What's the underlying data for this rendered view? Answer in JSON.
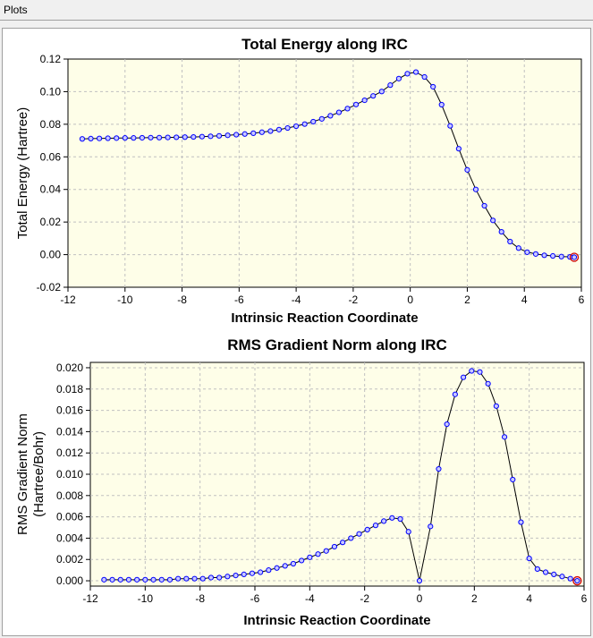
{
  "window": {
    "tab_label": "Plots"
  },
  "colors": {
    "plot_bg": "#fefee8",
    "grid": "#c0c0c0",
    "line": "#000000",
    "marker": "#0000ff",
    "marker_fill": "#c8c8ff",
    "endpoint": "#d00000"
  },
  "chart_data": [
    {
      "type": "line",
      "title": "Total Energy along IRC",
      "xlabel": "Intrinsic Reaction Coordinate",
      "ylabel": "Total Energy (Hartree)",
      "xlim": [
        -12,
        6
      ],
      "ylim": [
        -0.02,
        0.12
      ],
      "xticks": [
        -12,
        -10,
        -8,
        -6,
        -4,
        -2,
        0,
        2,
        4,
        6
      ],
      "yticks": [
        -0.02,
        0.0,
        0.02,
        0.04,
        0.06,
        0.08,
        0.1,
        0.12
      ],
      "ytick_labels": [
        "-0.02",
        "0.00",
        "0.02",
        "0.04",
        "0.06",
        "0.08",
        "0.10",
        "0.12"
      ],
      "xtick_labels": [
        "-12",
        "-10",
        "-8",
        "-6",
        "-4",
        "-2",
        "0",
        "2",
        "4",
        "6"
      ],
      "grid": true,
      "x": [
        -11.5,
        -11.2,
        -10.9,
        -10.6,
        -10.3,
        -10.0,
        -9.7,
        -9.4,
        -9.1,
        -8.8,
        -8.5,
        -8.2,
        -7.9,
        -7.6,
        -7.3,
        -7.0,
        -6.7,
        -6.4,
        -6.1,
        -5.8,
        -5.5,
        -5.2,
        -4.9,
        -4.6,
        -4.3,
        -4.0,
        -3.7,
        -3.4,
        -3.1,
        -2.8,
        -2.5,
        -2.2,
        -1.9,
        -1.6,
        -1.3,
        -1.0,
        -0.7,
        -0.4,
        -0.1,
        0.2,
        0.5,
        0.8,
        1.1,
        1.4,
        1.7,
        2.0,
        2.3,
        2.6,
        2.9,
        3.2,
        3.5,
        3.8,
        4.1,
        4.4,
        4.7,
        5.0,
        5.3,
        5.6,
        5.75
      ],
      "y": [
        0.071,
        0.0712,
        0.0713,
        0.0714,
        0.0715,
        0.0716,
        0.0716,
        0.0717,
        0.0718,
        0.0718,
        0.0719,
        0.072,
        0.0721,
        0.0722,
        0.0724,
        0.0726,
        0.0729,
        0.0732,
        0.0736,
        0.074,
        0.0745,
        0.0751,
        0.0758,
        0.0767,
        0.0777,
        0.0788,
        0.0801,
        0.0816,
        0.0833,
        0.0852,
        0.0873,
        0.0896,
        0.0921,
        0.0947,
        0.0974,
        0.1001,
        0.104,
        0.108,
        0.111,
        0.112,
        0.109,
        0.103,
        0.092,
        0.079,
        0.065,
        0.052,
        0.04,
        0.03,
        0.021,
        0.014,
        0.008,
        0.004,
        0.0015,
        0.0004,
        -0.0004,
        -0.0008,
        -0.0012,
        -0.0014,
        -0.0016
      ],
      "endpoint": {
        "x": 5.75,
        "y": -0.0016
      }
    },
    {
      "type": "line",
      "title": "RMS Gradient Norm along IRC",
      "xlabel": "Intrinsic Reaction Coordinate",
      "ylabel_lines": [
        "RMS Gradient Norm",
        "(Hartree/Bohr)"
      ],
      "xlim": [
        -12,
        6
      ],
      "ylim": [
        -0.0005,
        0.0205
      ],
      "xticks": [
        -12,
        -10,
        -8,
        -6,
        -4,
        -2,
        0,
        2,
        4,
        6
      ],
      "yticks": [
        0.0,
        0.002,
        0.004,
        0.006,
        0.008,
        0.01,
        0.012,
        0.014,
        0.016,
        0.018,
        0.02
      ],
      "ytick_labels": [
        "0.000",
        "0.002",
        "0.004",
        "0.006",
        "0.008",
        "0.010",
        "0.012",
        "0.014",
        "0.016",
        "0.018",
        "0.020"
      ],
      "xtick_labels": [
        "-12",
        "-10",
        "-8",
        "-6",
        "-4",
        "-2",
        "0",
        "2",
        "4",
        "6"
      ],
      "grid": true,
      "x": [
        -11.5,
        -11.2,
        -10.9,
        -10.6,
        -10.3,
        -10.0,
        -9.7,
        -9.4,
        -9.1,
        -8.8,
        -8.5,
        -8.2,
        -7.9,
        -7.6,
        -7.3,
        -7.0,
        -6.7,
        -6.4,
        -6.1,
        -5.8,
        -5.5,
        -5.2,
        -4.9,
        -4.6,
        -4.3,
        -4.0,
        -3.7,
        -3.4,
        -3.1,
        -2.8,
        -2.5,
        -2.2,
        -1.9,
        -1.6,
        -1.3,
        -1.0,
        -0.7,
        -0.4,
        0.0,
        0.4,
        0.7,
        1.0,
        1.3,
        1.6,
        1.9,
        2.2,
        2.5,
        2.8,
        3.1,
        3.4,
        3.7,
        4.0,
        4.3,
        4.6,
        4.9,
        5.2,
        5.5,
        5.75
      ],
      "y": [
        0.0001,
        0.0001,
        0.0001,
        0.0001,
        0.0001,
        0.0001,
        0.0001,
        0.0001,
        0.0001,
        0.0002,
        0.0002,
        0.0002,
        0.0002,
        0.0003,
        0.0003,
        0.0004,
        0.0005,
        0.0006,
        0.0007,
        0.0008,
        0.001,
        0.0012,
        0.0014,
        0.0016,
        0.0019,
        0.0022,
        0.0025,
        0.0028,
        0.0032,
        0.0036,
        0.004,
        0.0044,
        0.0048,
        0.0052,
        0.0056,
        0.0059,
        0.0058,
        0.0046,
        0.0,
        0.0051,
        0.0105,
        0.0147,
        0.0175,
        0.0191,
        0.0197,
        0.0196,
        0.0185,
        0.0164,
        0.0135,
        0.0095,
        0.0055,
        0.0021,
        0.0011,
        0.0008,
        0.0006,
        0.0004,
        0.0002,
        0.0
      ],
      "endpoint": {
        "x": 5.75,
        "y": 0.0
      }
    }
  ]
}
